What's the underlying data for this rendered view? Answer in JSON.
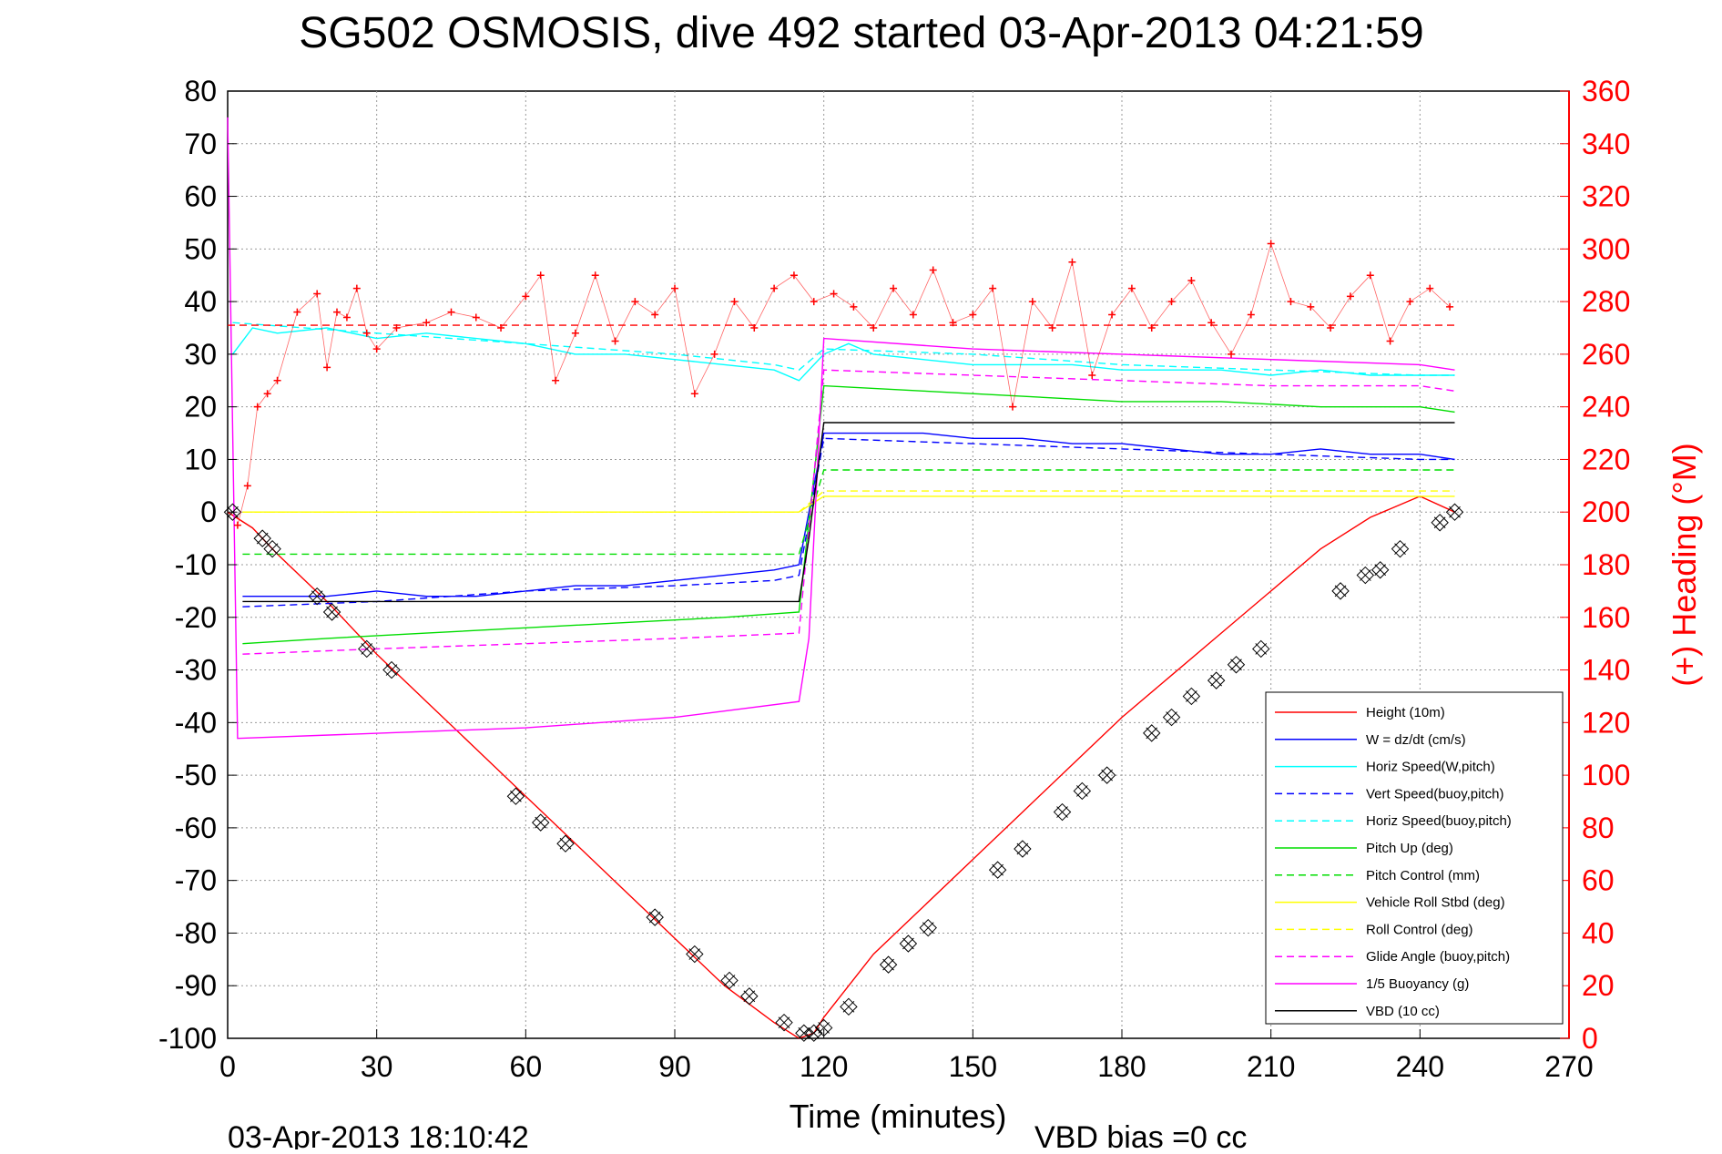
{
  "chart_data": {
    "type": "line",
    "title": "SG502 OSMOSIS, dive 492 started 03-Apr-2013 04:21:59",
    "xlabel": "Time (minutes)",
    "ylabel": "",
    "y2label": "(+) Heading (°M)",
    "footer_left": "03-Apr-2013 18:10:42",
    "footer_right": "VBD bias =0 cc",
    "xlim": [
      0,
      270
    ],
    "ylim": [
      -100,
      80
    ],
    "y2lim": [
      0,
      360
    ],
    "xticks": [
      "0",
      "30",
      "60",
      "90",
      "120",
      "150",
      "180",
      "210",
      "240",
      "270"
    ],
    "yticks": [
      "80",
      "70",
      "60",
      "50",
      "40",
      "30",
      "20",
      "10",
      "0",
      "-10",
      "-20",
      "-30",
      "-40",
      "-50",
      "-60",
      "-70",
      "-80",
      "-90",
      "-100"
    ],
    "y2ticks": [
      "360",
      "340",
      "320",
      "300",
      "280",
      "260",
      "240",
      "220",
      "200",
      "180",
      "160",
      "140",
      "120",
      "100",
      "80",
      "60",
      "40",
      "20",
      "0"
    ],
    "grid": true,
    "legend_position": "bottom-right",
    "legend": [
      {
        "label": "Height (10m)",
        "color": "#ff0000",
        "dash": "solid"
      },
      {
        "label": "W = dz/dt (cm/s)",
        "color": "#0000ff",
        "dash": "solid"
      },
      {
        "label": "Horiz Speed(W,pitch)",
        "color": "#00ffff",
        "dash": "solid"
      },
      {
        "label": "Vert Speed(buoy,pitch)",
        "color": "#0000ff",
        "dash": "dashed"
      },
      {
        "label": "Horiz Speed(buoy,pitch)",
        "color": "#00ffff",
        "dash": "dashed"
      },
      {
        "label": "Pitch Up (deg)",
        "color": "#00dd00",
        "dash": "solid"
      },
      {
        "label": "Pitch Control (mm)",
        "color": "#00dd00",
        "dash": "dashed"
      },
      {
        "label": "Vehicle Roll Stbd (deg)",
        "color": "#ffff00",
        "dash": "solid"
      },
      {
        "label": "Roll Control (deg)",
        "color": "#ffff00",
        "dash": "dashed"
      },
      {
        "label": "Glide Angle (buoy,pitch)",
        "color": "#ff00ff",
        "dash": "dashed"
      },
      {
        "label": "1/5 Buoyancy (g)",
        "color": "#ff00ff",
        "dash": "solid"
      },
      {
        "label": "VBD (10 cc)",
        "color": "#000000",
        "dash": "solid"
      }
    ],
    "series": [
      {
        "name": "Height (10m)",
        "x": [
          0,
          5,
          10,
          20,
          30,
          40,
          50,
          60,
          70,
          80,
          90,
          100,
          110,
          115,
          118,
          120,
          130,
          140,
          150,
          160,
          170,
          180,
          190,
          200,
          210,
          220,
          230,
          240,
          247
        ],
        "y": [
          0,
          -3,
          -8,
          -17,
          -27,
          -36,
          -45,
          -54,
          -63,
          -72,
          -81,
          -90,
          -97,
          -100,
          -99,
          -96,
          -84,
          -75,
          -66,
          -57,
          -48,
          -39,
          -31,
          -23,
          -15,
          -7,
          -1,
          3,
          0
        ]
      },
      {
        "name": "W = dz/dt (cm/s)",
        "x": [
          3,
          10,
          20,
          30,
          40,
          50,
          60,
          70,
          80,
          90,
          100,
          110,
          115,
          120,
          125,
          130,
          140,
          150,
          160,
          170,
          180,
          190,
          200,
          210,
          220,
          230,
          240,
          247
        ],
        "y": [
          -16,
          -16,
          -16,
          -15,
          -16,
          -16,
          -15,
          -14,
          -14,
          -13,
          -12,
          -11,
          -10,
          15,
          15,
          15,
          15,
          14,
          14,
          13,
          13,
          12,
          11,
          11,
          12,
          11,
          11,
          10
        ]
      },
      {
        "name": "Horiz Speed(W,pitch)",
        "x": [
          1,
          5,
          10,
          20,
          30,
          40,
          50,
          60,
          70,
          80,
          90,
          100,
          110,
          115,
          120,
          125,
          130,
          140,
          150,
          160,
          170,
          180,
          190,
          200,
          210,
          220,
          230,
          240,
          247
        ],
        "y": [
          30,
          35,
          34,
          35,
          33,
          34,
          33,
          32,
          30,
          30,
          29,
          28,
          27,
          25,
          30,
          32,
          30,
          29,
          28,
          28,
          28,
          27,
          27,
          27,
          26,
          27,
          26,
          26,
          26
        ]
      },
      {
        "name": "Vert Speed(buoy,pitch)",
        "x": [
          3,
          30,
          60,
          90,
          110,
          115,
          120,
          150,
          180,
          210,
          240,
          247
        ],
        "y": [
          -18,
          -17,
          -15,
          -14,
          -13,
          -12,
          14,
          13,
          12,
          11,
          10,
          10
        ]
      },
      {
        "name": "Horiz Speed(buoy,pitch)",
        "x": [
          1,
          30,
          60,
          90,
          110,
          115,
          120,
          150,
          180,
          210,
          240,
          247
        ],
        "y": [
          36,
          34,
          32,
          30,
          28,
          27,
          31,
          30,
          28,
          27,
          26,
          26
        ]
      },
      {
        "name": "Pitch Up (deg)",
        "x": [
          3,
          20,
          40,
          60,
          80,
          100,
          115,
          120,
          140,
          160,
          180,
          200,
          220,
          240,
          247
        ],
        "y": [
          -25,
          -24,
          -23,
          -22,
          -21,
          -20,
          -19,
          24,
          23,
          22,
          21,
          21,
          20,
          20,
          19
        ]
      },
      {
        "name": "Pitch Control (mm)",
        "x": [
          3,
          115,
          120,
          247
        ],
        "y": [
          -8,
          -8,
          8,
          8
        ]
      },
      {
        "name": "Vehicle Roll Stbd (deg)",
        "x": [
          3,
          30,
          60,
          90,
          115,
          120,
          150,
          180,
          210,
          240,
          247
        ],
        "y": [
          0,
          0,
          0,
          0,
          0,
          3,
          3,
          3,
          3,
          3,
          3
        ]
      },
      {
        "name": "Roll Control (deg)",
        "x": [
          3,
          115,
          120,
          247
        ],
        "y": [
          0,
          0,
          4,
          4
        ]
      },
      {
        "name": "Glide Angle (buoy,pitch)",
        "x": [
          3,
          30,
          60,
          90,
          115,
          120,
          150,
          180,
          210,
          240,
          247
        ],
        "y": [
          -27,
          -26,
          -25,
          -24,
          -23,
          27,
          26,
          25,
          24,
          24,
          23
        ]
      },
      {
        "name": "1/5 Buoyancy (g)",
        "x": [
          0,
          2,
          60,
          90,
          115,
          117,
          120,
          150,
          180,
          210,
          240,
          247
        ],
        "y": [
          75,
          -43,
          -41,
          -39,
          -36,
          -24,
          33,
          31,
          30,
          29,
          28,
          27
        ]
      },
      {
        "name": "VBD (10 cc)",
        "x": [
          3,
          115,
          117,
          120,
          247
        ],
        "y": [
          -17,
          -17,
          -5,
          17,
          17
        ]
      },
      {
        "name": "(+) Heading (°M)",
        "axis": "right",
        "x": [
          2,
          4,
          6,
          8,
          10,
          14,
          18,
          20,
          22,
          24,
          26,
          28,
          30,
          34,
          40,
          45,
          50,
          55,
          60,
          63,
          66,
          70,
          74,
          78,
          82,
          86,
          90,
          94,
          98,
          102,
          106,
          110,
          114,
          118,
          122,
          126,
          130,
          134,
          138,
          142,
          146,
          150,
          154,
          158,
          162,
          166,
          170,
          174,
          178,
          182,
          186,
          190,
          194,
          198,
          202,
          206,
          210,
          214,
          218,
          222,
          226,
          230,
          234,
          238,
          242,
          246
        ],
        "y": [
          195,
          210,
          240,
          245,
          250,
          276,
          283,
          255,
          276,
          274,
          285,
          268,
          262,
          270,
          272,
          276,
          274,
          270,
          282,
          290,
          250,
          268,
          290,
          265,
          280,
          275,
          285,
          245,
          260,
          280,
          270,
          285,
          290,
          280,
          283,
          278,
          270,
          285,
          275,
          292,
          272,
          275,
          285,
          240,
          280,
          270,
          295,
          252,
          275,
          285,
          270,
          280,
          288,
          272,
          260,
          275,
          302,
          280,
          278,
          270,
          282,
          290,
          265,
          280,
          285,
          278
        ]
      }
    ],
    "markers": {
      "name": "Height (10m)",
      "x": [
        1,
        7,
        9,
        18,
        21,
        28,
        33,
        58,
        63,
        68,
        86,
        94,
        101,
        105,
        112,
        116,
        118,
        120,
        125,
        133,
        137,
        141,
        155,
        160,
        168,
        172,
        177,
        186,
        190,
        194,
        199,
        203,
        208,
        224,
        229,
        232,
        236,
        244,
        247
      ],
      "y": [
        0,
        -5,
        -7,
        -16,
        -19,
        -26,
        -30,
        -54,
        -59,
        -63,
        -77,
        -84,
        -89,
        -92,
        -97,
        -99,
        -99,
        -98,
        -94,
        -86,
        -82,
        -79,
        -68,
        -64,
        -57,
        -53,
        -50,
        -42,
        -39,
        -35,
        -32,
        -29,
        -26,
        -15,
        -12,
        -11,
        -7,
        -2,
        0
      ]
    },
    "heading_reference": 271
  },
  "colors": {
    "height": "#ff0000",
    "heading": "#ff0000",
    "grid": "#999999",
    "axis": "#000000"
  }
}
